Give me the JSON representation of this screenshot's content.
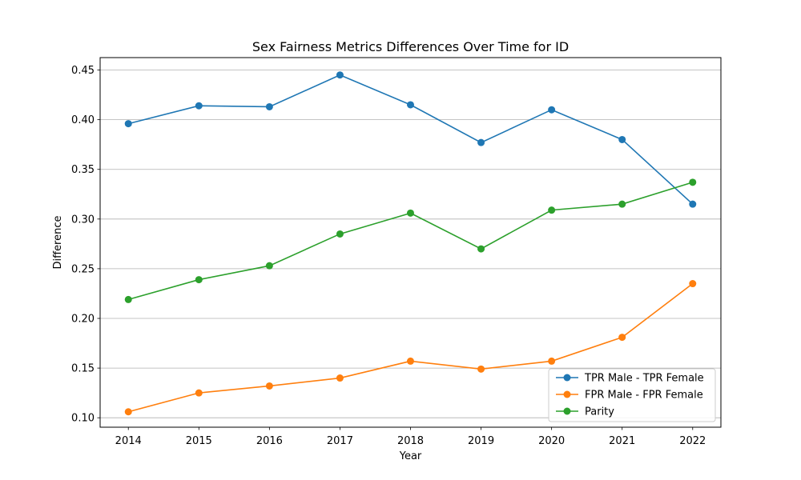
{
  "chart_data": {
    "type": "line",
    "title": "Sex Fairness Metrics Differences Over Time for ID",
    "xlabel": "Year",
    "ylabel": "Difference",
    "x": [
      2014,
      2015,
      2016,
      2017,
      2018,
      2019,
      2020,
      2021,
      2022
    ],
    "xlim": [
      2013.6,
      2022.4
    ],
    "ylim": [
      0.0905,
      0.4625
    ],
    "yticks": [
      "0.10",
      "0.15",
      "0.20",
      "0.25",
      "0.30",
      "0.35",
      "0.40",
      "0.45"
    ],
    "grid": "horizontal",
    "legend_position": "lower-right",
    "series": [
      {
        "name": "TPR Male - TPR Female",
        "color": "#1f77b4",
        "values": [
          0.396,
          0.414,
          0.413,
          0.445,
          0.415,
          0.377,
          0.41,
          0.38,
          0.315
        ]
      },
      {
        "name": "FPR Male - FPR Female",
        "color": "#ff7f0e",
        "values": [
          0.106,
          0.125,
          0.132,
          0.14,
          0.157,
          0.149,
          0.157,
          0.181,
          0.235
        ]
      },
      {
        "name": "Parity",
        "color": "#2ca02c",
        "values": [
          0.219,
          0.239,
          0.253,
          0.285,
          0.306,
          0.27,
          0.309,
          0.315,
          0.337
        ]
      }
    ]
  }
}
